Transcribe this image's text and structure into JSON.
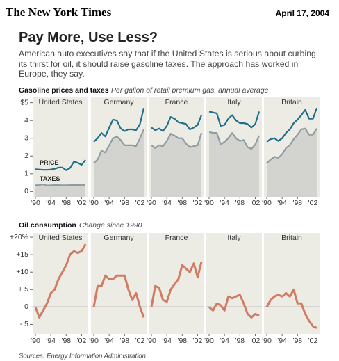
{
  "header": {
    "logo": "The New York Times",
    "date": "April 17, 2004",
    "title": "Pay More, Use Less?",
    "subtitle": "American auto executives say that if the United States is serious about curbing its thirst for oil, it should raise gasoline taxes. The approach has worked in Europe, they say."
  },
  "sections": [
    {
      "title": "Gasoline prices and taxes",
      "subtitle": "Per gallon of retail premium gas, annual average"
    },
    {
      "title": "Oil consumption",
      "subtitle": "Change since 1990"
    }
  ],
  "source": "Sources: Energy Information Administration",
  "chart_data": [
    {
      "type": "line",
      "title": "United States",
      "x": [
        1990,
        1991,
        1992,
        1993,
        1994,
        1995,
        1996,
        1997,
        1998,
        1999,
        2000,
        2001,
        2002,
        2003
      ],
      "xlim": [
        1990,
        2003
      ],
      "xticks": [
        {
          "value": 1990,
          "label": "'90"
        },
        {
          "value": 1994,
          "label": "'94"
        },
        {
          "value": 1998,
          "label": "'98"
        },
        {
          "value": 2002,
          "label": "'02"
        }
      ],
      "ylim": [
        -0.3,
        5.3
      ],
      "yticks": [
        {
          "value": 5,
          "label": "$5"
        },
        4,
        3,
        2,
        1,
        0
      ],
      "series": [
        {
          "name": "PRICE",
          "color": "#1f6e8a",
          "values": [
            1.25,
            1.24,
            1.22,
            1.22,
            1.24,
            1.28,
            1.35,
            1.35,
            1.2,
            1.32,
            1.68,
            1.62,
            1.5,
            1.78
          ]
        },
        {
          "name": "TAXES",
          "color": "#8d9da3",
          "fill": "#d3d4d0",
          "values": [
            0.35,
            0.36,
            0.4,
            0.34,
            0.35,
            0.36,
            0.36,
            0.35,
            0.35,
            0.36,
            0.36,
            0.36,
            0.36,
            0.36
          ]
        }
      ]
    },
    {
      "type": "line",
      "title": "Germany",
      "x": [
        1990,
        1991,
        1992,
        1993,
        1994,
        1995,
        1996,
        1997,
        1998,
        1999,
        2000,
        2001,
        2002,
        2003
      ],
      "xlim": [
        1990,
        2003
      ],
      "xticks": [
        {
          "value": 1990,
          "label": "'90"
        },
        {
          "value": 1994,
          "label": "'94"
        },
        {
          "value": 1998,
          "label": "'98"
        },
        {
          "value": 2002,
          "label": "'02"
        }
      ],
      "ylim": [
        -0.3,
        5.3
      ],
      "series": [
        {
          "color": "#1f6e8a",
          "values": [
            2.8,
            3.0,
            3.3,
            3.1,
            3.6,
            4.05,
            4.0,
            3.55,
            3.4,
            3.5,
            3.5,
            3.45,
            3.8,
            4.7
          ]
        },
        {
          "color": "#8d9da3",
          "fill": "#d3d4d0",
          "values": [
            1.6,
            1.8,
            2.3,
            2.2,
            2.6,
            3.0,
            3.1,
            2.9,
            2.6,
            2.6,
            2.6,
            2.55,
            3.0,
            3.5
          ]
        }
      ]
    },
    {
      "type": "line",
      "title": "France",
      "x": [
        1990,
        1991,
        1992,
        1993,
        1994,
        1995,
        1996,
        1997,
        1998,
        1999,
        2000,
        2001,
        2002,
        2003
      ],
      "xlim": [
        1990,
        2003
      ],
      "xticks": [
        {
          "value": 1990,
          "label": "'90"
        },
        {
          "value": 1994,
          "label": "'94"
        },
        {
          "value": 1998,
          "label": "'98"
        },
        {
          "value": 2002,
          "label": "'02"
        }
      ],
      "ylim": [
        -0.3,
        5.3
      ],
      "series": [
        {
          "color": "#1f6e8a",
          "values": [
            3.6,
            3.45,
            3.55,
            3.4,
            3.7,
            4.2,
            4.1,
            3.9,
            3.85,
            3.8,
            3.5,
            3.6,
            3.75,
            4.3
          ]
        },
        {
          "color": "#8d9da3",
          "fill": "#d3d4d0",
          "values": [
            2.6,
            2.45,
            2.6,
            2.55,
            2.85,
            3.25,
            3.15,
            3.0,
            3.0,
            2.7,
            2.5,
            2.55,
            2.6,
            3.3
          ]
        }
      ]
    },
    {
      "type": "line",
      "title": "Italy",
      "x": [
        1990,
        1991,
        1992,
        1993,
        1994,
        1995,
        1996,
        1997,
        1998,
        1999,
        2000,
        2001,
        2002,
        2003
      ],
      "xlim": [
        1990,
        2003
      ],
      "xticks": [
        {
          "value": 1990,
          "label": "'90"
        },
        {
          "value": 1994,
          "label": "'94"
        },
        {
          "value": 1998,
          "label": "'98"
        },
        {
          "value": 2002,
          "label": "'02"
        }
      ],
      "ylim": [
        -0.3,
        5.3
      ],
      "series": [
        {
          "color": "#1f6e8a",
          "values": [
            4.5,
            4.45,
            4.4,
            3.7,
            3.75,
            4.1,
            4.3,
            4.0,
            3.85,
            3.85,
            3.8,
            3.6,
            3.8,
            4.5
          ]
        },
        {
          "color": "#8d9da3",
          "fill": "#d3d4d0",
          "values": [
            3.35,
            3.3,
            3.3,
            2.65,
            2.8,
            3.0,
            3.3,
            3.0,
            2.85,
            2.9,
            2.5,
            2.4,
            2.65,
            3.15
          ]
        }
      ]
    },
    {
      "type": "line",
      "title": "Britain",
      "x": [
        1990,
        1991,
        1992,
        1993,
        1994,
        1995,
        1996,
        1997,
        1998,
        1999,
        2000,
        2001,
        2002,
        2003
      ],
      "xlim": [
        1990,
        2003
      ],
      "xticks": [
        {
          "value": 1990,
          "label": "'90"
        },
        {
          "value": 1994,
          "label": "'94"
        },
        {
          "value": 1998,
          "label": "'98"
        },
        {
          "value": 2002,
          "label": "'02"
        }
      ],
      "ylim": [
        -0.3,
        5.3
      ],
      "series": [
        {
          "color": "#1f6e8a",
          "values": [
            2.8,
            2.95,
            3.0,
            2.85,
            3.0,
            3.3,
            3.5,
            3.85,
            4.05,
            4.3,
            4.6,
            4.1,
            4.1,
            4.7
          ]
        },
        {
          "color": "#8d9da3",
          "fill": "#d3d4d0",
          "values": [
            1.6,
            1.8,
            1.95,
            1.9,
            2.1,
            2.45,
            2.6,
            2.95,
            3.2,
            3.5,
            3.55,
            3.2,
            3.2,
            3.55
          ]
        }
      ]
    },
    {
      "type": "line",
      "title": "United States",
      "x": [
        1990,
        1991,
        1992,
        1993,
        1994,
        1995,
        1996,
        1997,
        1998,
        1999,
        2000,
        2001,
        2002,
        2003
      ],
      "xlim": [
        1990,
        2003
      ],
      "xticks": [
        {
          "value": 1990,
          "label": "'90"
        },
        {
          "value": 1994,
          "label": "'94"
        },
        {
          "value": 1998,
          "label": "'98"
        },
        {
          "value": 2002,
          "label": "'02"
        }
      ],
      "ylim": [
        -7.7,
        21.2
      ],
      "yticks": [
        {
          "value": 20,
          "label": "+20%"
        },
        {
          "value": 15,
          "label": "+15"
        },
        {
          "value": 10,
          "label": "+10"
        },
        {
          "value": 5,
          "label": "+ 5"
        },
        0,
        {
          "value": -5,
          "label": "- 5"
        }
      ],
      "series": [
        {
          "color": "#d27b64",
          "values": [
            0,
            -3,
            -1,
            1,
            4,
            5,
            8,
            10,
            12,
            15,
            16,
            15.5,
            16,
            18
          ]
        }
      ]
    },
    {
      "type": "line",
      "title": "Germany",
      "x": [
        1990,
        1991,
        1992,
        1993,
        1994,
        1995,
        1996,
        1997,
        1998,
        1999,
        2000,
        2001,
        2002,
        2003
      ],
      "xlim": [
        1990,
        2003
      ],
      "xticks": [
        {
          "value": 1990,
          "label": "'90"
        },
        {
          "value": 1994,
          "label": "'94"
        },
        {
          "value": 1998,
          "label": "'98"
        },
        {
          "value": 2002,
          "label": "'02"
        }
      ],
      "ylim": [
        -7.7,
        21.2
      ],
      "series": [
        {
          "color": "#d27b64",
          "values": [
            0,
            6,
            6,
            9,
            8,
            8,
            9,
            9,
            9,
            5,
            2,
            4,
            0,
            -3
          ]
        }
      ]
    },
    {
      "type": "line",
      "title": "France",
      "x": [
        1990,
        1991,
        1992,
        1993,
        1994,
        1995,
        1996,
        1997,
        1998,
        1999,
        2000,
        2001,
        2002,
        2003
      ],
      "xlim": [
        1990,
        2003
      ],
      "xticks": [
        {
          "value": 1990,
          "label": "'90"
        },
        {
          "value": 1994,
          "label": "'94"
        },
        {
          "value": 1998,
          "label": "'98"
        },
        {
          "value": 2002,
          "label": "'02"
        }
      ],
      "ylim": [
        -7.7,
        21.2
      ],
      "series": [
        {
          "color": "#d27b64",
          "values": [
            0,
            6,
            5.5,
            2,
            1.5,
            5,
            6.5,
            8,
            12,
            11,
            10,
            12.5,
            8.5,
            13
          ]
        }
      ]
    },
    {
      "type": "line",
      "title": "Italy",
      "x": [
        1990,
        1991,
        1992,
        1993,
        1994,
        1995,
        1996,
        1997,
        1998,
        1999,
        2000,
        2001,
        2002,
        2003
      ],
      "xlim": [
        1990,
        2003
      ],
      "xticks": [
        {
          "value": 1990,
          "label": "'90"
        },
        {
          "value": 1994,
          "label": "'94"
        },
        {
          "value": 1998,
          "label": "'98"
        },
        {
          "value": 2002,
          "label": "'02"
        }
      ],
      "ylim": [
        -7.7,
        21.2
      ],
      "series": [
        {
          "color": "#d27b64",
          "values": [
            0,
            -1,
            1,
            0.5,
            -1,
            3,
            2.5,
            3,
            3.5,
            1,
            -2,
            -3,
            -2,
            -2.5
          ]
        }
      ]
    },
    {
      "type": "line",
      "title": "Britain",
      "x": [
        1990,
        1991,
        1992,
        1993,
        1994,
        1995,
        1996,
        1997,
        1998,
        1999,
        2000,
        2001,
        2002,
        2003
      ],
      "xlim": [
        1990,
        2003
      ],
      "xticks": [
        {
          "value": 1990,
          "label": "'90"
        },
        {
          "value": 1994,
          "label": "'94"
        },
        {
          "value": 1998,
          "label": "'98"
        },
        {
          "value": 2002,
          "label": "'02"
        }
      ],
      "ylim": [
        -7.7,
        21.2
      ],
      "series": [
        {
          "color": "#d27b64",
          "values": [
            0,
            2,
            3,
            3.5,
            3,
            4,
            3,
            5,
            1,
            1,
            -2,
            -4,
            -5.5,
            -6
          ]
        }
      ]
    }
  ]
}
